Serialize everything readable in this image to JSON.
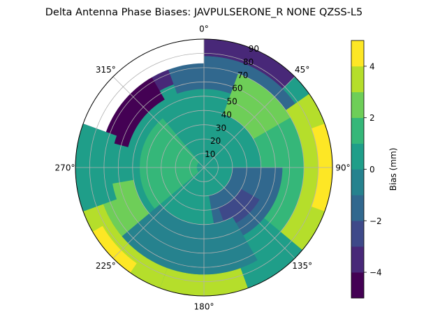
{
  "chart_data": {
    "type": "heatmap",
    "projection": "polar",
    "title": "Delta Antenna Phase Biases: JAVPULSERONE_R  NONE QZSS-L5",
    "theta_zero_location": "N",
    "theta_direction": "clockwise",
    "r_range": [
      0,
      90
    ],
    "angle_tick_labels": [
      "0°",
      "45°",
      "90°",
      "135°",
      "180°",
      "225°",
      "270°",
      "315°"
    ],
    "radial_tick_labels": [
      "10",
      "20",
      "30",
      "40",
      "50",
      "60",
      "70",
      "80",
      "90"
    ],
    "grid": true,
    "colorbar": {
      "label": "Bias (mm)",
      "min": -5,
      "max": 5,
      "levels": [
        -5,
        -4,
        -3,
        -2,
        -1,
        0,
        1,
        2,
        3,
        4,
        5
      ],
      "tick_labels": [
        "−4",
        "−2",
        "0",
        "2",
        "4"
      ],
      "tick_values": [
        -4,
        -2,
        0,
        2,
        4
      ],
      "colormap": "viridis",
      "colors": [
        "#440154",
        "#482878",
        "#3e4989",
        "#31688e",
        "#26828e",
        "#1f9e89",
        "#35b779",
        "#6ece58",
        "#b5de2b",
        "#fde725"
      ]
    },
    "background_level": 0,
    "no_data_sector": {
      "azimuth": [
        290,
        360
      ],
      "elevation": [
        73,
        90
      ]
    },
    "regions": [
      {
        "name": "outer-north-low",
        "azimuth": [
          290,
          360
        ],
        "elevation": [
          62,
          73
        ],
        "value": -3.5
      },
      {
        "name": "outer-northwest-low",
        "azimuth": [
          285,
          330
        ],
        "elevation": [
          55,
          90
        ],
        "value": -4.5
      },
      {
        "name": "north-east-edge",
        "azimuth": [
          0,
          45
        ],
        "elevation": [
          78,
          90
        ],
        "value": -3.5
      },
      {
        "name": "north-band",
        "azimuth": [
          340,
          60
        ],
        "elevation": [
          55,
          78
        ],
        "value": -1.5
      },
      {
        "name": "north-upper-mid",
        "azimuth": [
          20,
          70
        ],
        "elevation": [
          40,
          70
        ],
        "value": 2.5
      },
      {
        "name": "east-edge",
        "azimuth": [
          55,
          130
        ],
        "elevation": [
          70,
          90
        ],
        "value": 3.5
      },
      {
        "name": "east-edge-peak",
        "azimuth": [
          70,
          110
        ],
        "elevation": [
          80,
          90
        ],
        "value": 4.5
      },
      {
        "name": "east-mid",
        "azimuth": [
          60,
          130
        ],
        "elevation": [
          40,
          70
        ],
        "value": 1.5
      },
      {
        "name": "center-east",
        "azimuth": [
          90,
          170
        ],
        "elevation": [
          20,
          55
        ],
        "value": -1.5
      },
      {
        "name": "center-southeast-low",
        "azimuth": [
          120,
          160
        ],
        "elevation": [
          30,
          45
        ],
        "value": -2.5
      },
      {
        "name": "center-west",
        "azimuth": [
          230,
          320
        ],
        "elevation": [
          5,
          45
        ],
        "value": 1.5
      },
      {
        "name": "southwest-band",
        "azimuth": [
          190,
          260
        ],
        "elevation": [
          50,
          75
        ],
        "value": 2.5
      },
      {
        "name": "southwest-edge",
        "azimuth": [
          200,
          250
        ],
        "elevation": [
          75,
          90
        ],
        "value": 3.5
      },
      {
        "name": "southwest-edge-peak",
        "azimuth": [
          215,
          240
        ],
        "elevation": [
          82,
          90
        ],
        "value": 4.5
      },
      {
        "name": "south-edge",
        "azimuth": [
          160,
          200
        ],
        "elevation": [
          75,
          90
        ],
        "value": 3.5
      },
      {
        "name": "south-mid",
        "azimuth": [
          150,
          230
        ],
        "elevation": [
          40,
          75
        ],
        "value": -0.5
      },
      {
        "name": "west-edge",
        "azimuth": [
          250,
          290
        ],
        "elevation": [
          65,
          90
        ],
        "value": 0.5
      }
    ]
  }
}
